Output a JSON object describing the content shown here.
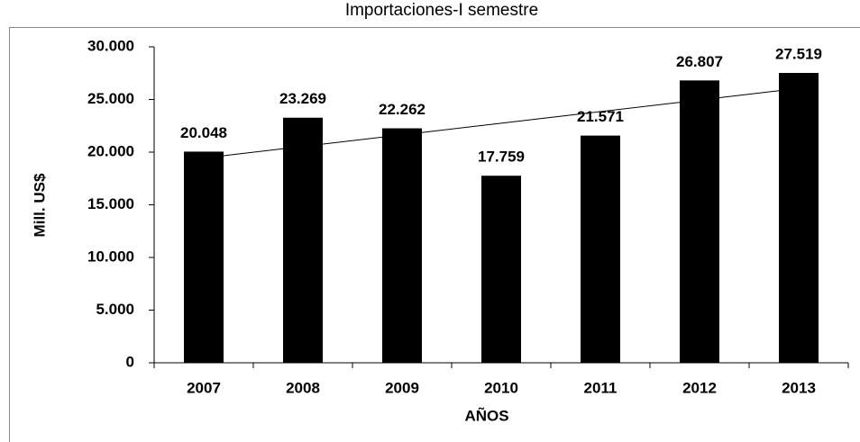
{
  "chart_data": {
    "type": "bar",
    "title": "Importaciones-I semestre",
    "x_label": "AÑOS",
    "y_label": "Mill. US$",
    "categories": [
      "2007",
      "2008",
      "2009",
      "2010",
      "2011",
      "2012",
      "2013"
    ],
    "values": [
      20048,
      23269,
      22262,
      17759,
      21571,
      26807,
      27519
    ],
    "value_labels": [
      "20.048",
      "23.269",
      "22.262",
      "17.759",
      "21.571",
      "26.807",
      "27.519"
    ],
    "color": "#000000",
    "ylim": [
      0,
      30000
    ],
    "yticks": [
      0,
      {
        "value": 5000,
        "label": "5.000"
      },
      {
        "value": 10000,
        "label": "10.000"
      },
      {
        "value": 15000,
        "label": "15.000"
      },
      {
        "value": 20000,
        "label": "20.000"
      },
      {
        "value": 25000,
        "label": "25.000"
      },
      {
        "value": 30000,
        "label": "30.000"
      }
    ],
    "grid": false,
    "trendline": true
  }
}
